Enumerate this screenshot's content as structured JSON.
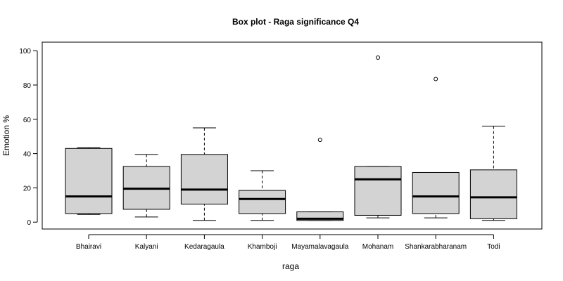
{
  "chart_data": {
    "type": "box",
    "title": "Box plot - Raga significance Q4",
    "xlabel": "raga",
    "ylabel": "Emotion %",
    "ylim": [
      -4,
      105
    ],
    "yticks": [
      0,
      20,
      40,
      60,
      80,
      100
    ],
    "grid": false,
    "box_fill": "#d3d3d3",
    "line_color": "#000000",
    "categories": [
      "Bhairavi",
      "Kalyani",
      "Kedaragaula",
      "Khamboji",
      "Mayamalavagaula",
      "Mohanam",
      "Shankarabharanam",
      "Todi"
    ],
    "boxes": [
      {
        "min": 4.5,
        "q1": 5,
        "median": 15,
        "q3": 43,
        "max": 43.5,
        "outliers": []
      },
      {
        "min": 3,
        "q1": 7.5,
        "median": 19.5,
        "q3": 32.5,
        "max": 39.5,
        "outliers": []
      },
      {
        "min": 1,
        "q1": 10.5,
        "median": 19,
        "q3": 39.5,
        "max": 55,
        "outliers": []
      },
      {
        "min": 1,
        "q1": 5,
        "median": 13.5,
        "q3": 18.5,
        "max": 30,
        "outliers": []
      },
      {
        "min": 1,
        "q1": 1,
        "median": 2,
        "q3": 6,
        "max": 6,
        "outliers": [
          48
        ]
      },
      {
        "min": 2.5,
        "q1": 4,
        "median": 25,
        "q3": 32.5,
        "max": 32.5,
        "outliers": [
          96
        ]
      },
      {
        "min": 2.5,
        "q1": 5,
        "median": 15,
        "q3": 29,
        "max": 29,
        "outliers": [
          83.5
        ]
      },
      {
        "min": 1,
        "q1": 2,
        "median": 14.5,
        "q3": 30.5,
        "max": 56,
        "outliers": []
      }
    ]
  }
}
